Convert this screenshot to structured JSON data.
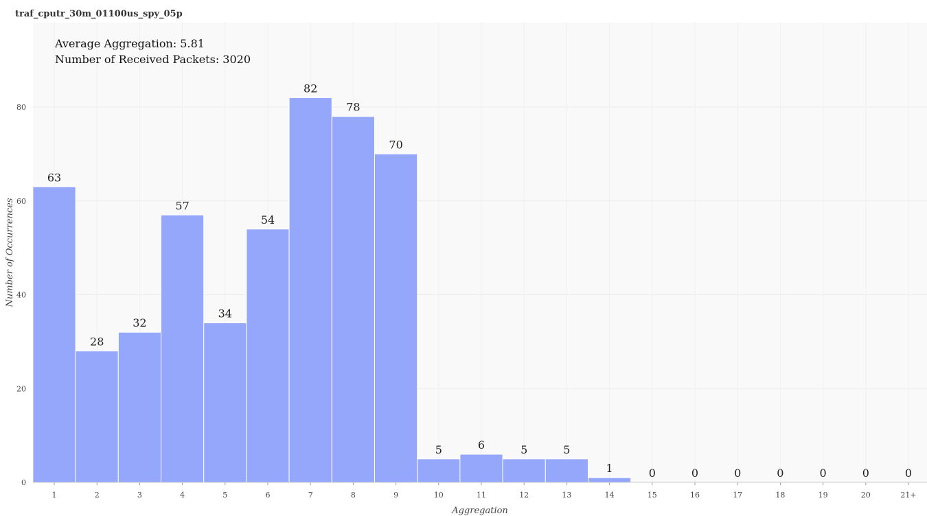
{
  "chart_data": {
    "type": "bar",
    "title": "traf_cputr_30m_01100us_spy_05p",
    "xlabel": "Aggregation",
    "ylabel": "Number of Occurrences",
    "categories": [
      "1",
      "2",
      "3",
      "4",
      "5",
      "6",
      "7",
      "8",
      "9",
      "10",
      "11",
      "12",
      "13",
      "14",
      "15",
      "16",
      "17",
      "18",
      "19",
      "20",
      "21+"
    ],
    "values": [
      63,
      28,
      32,
      57,
      34,
      54,
      82,
      78,
      70,
      5,
      6,
      5,
      5,
      1,
      0,
      0,
      0,
      0,
      0,
      0,
      0
    ],
    "ylim": [
      0,
      98
    ],
    "yticks": [
      0,
      20,
      40,
      60,
      80
    ],
    "grid": true,
    "bar_color": "#94a7fa",
    "annotations": [
      "Average Aggregation: 5.81",
      "Number of Received Packets: 3020"
    ]
  }
}
